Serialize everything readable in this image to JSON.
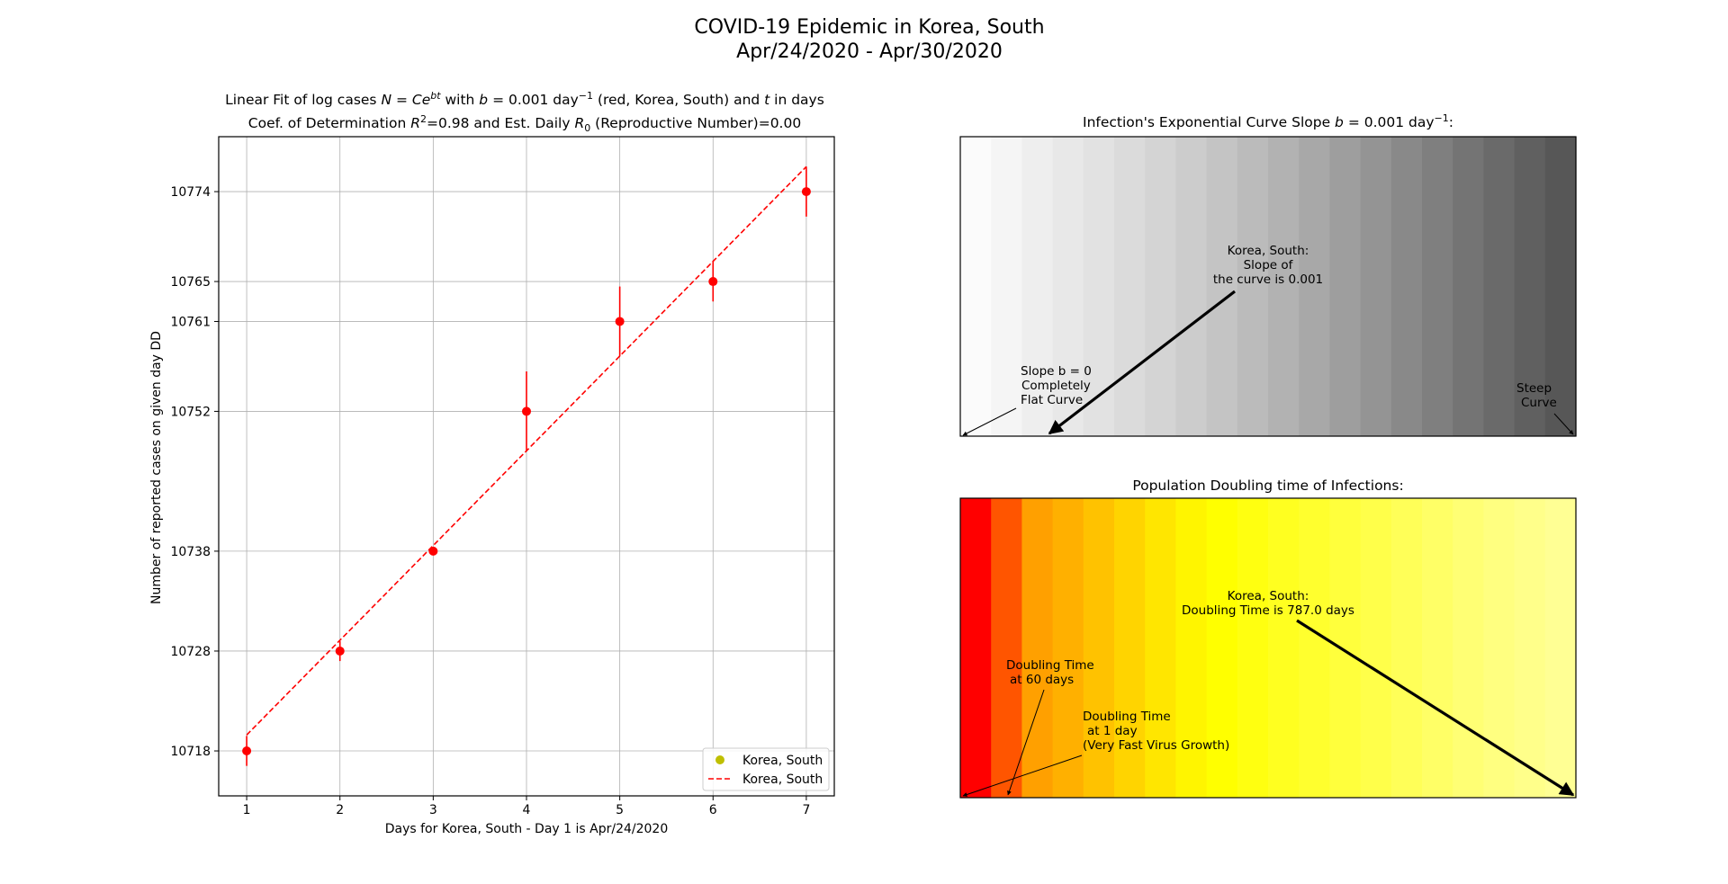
{
  "figure": {
    "title_line1": "COVID-19 Epidemic in Korea, South",
    "title_line2": "Apr/24/2020 - Apr/30/2020"
  },
  "colors": {
    "fit_red": "#ff0000",
    "legend_marker": "#bfbf00",
    "arrow": "#000000"
  },
  "chart_data": [
    {
      "type": "scatter",
      "title_line1": "Linear Fit of log cases N = Ce^{bt} with b = 0.001 day^-1 (red, Korea, South) and t in days",
      "title_line2": "Coef. of Determination R^2=0.98 and Est. Daily R_0 (Reproductive Number)=0.00",
      "xlabel": "Days for Korea, South - Day 1 is Apr/24/2020",
      "ylabel": "Number of reported cases on given day DD",
      "x": [
        1,
        2,
        3,
        4,
        5,
        6,
        7
      ],
      "y": [
        10718,
        10728,
        10738,
        10752,
        10761,
        10765,
        10774
      ],
      "y_err": [
        1.5,
        1.0,
        0.3,
        4.0,
        3.5,
        2.0,
        2.5
      ],
      "fit": {
        "x": [
          1,
          7
        ],
        "y": [
          10719.6,
          10776.5
        ]
      },
      "xticks": [
        1,
        2,
        3,
        4,
        5,
        6,
        7
      ],
      "yticks": [
        10718,
        10728,
        10738,
        10752,
        10761,
        10765,
        10774
      ],
      "xlim": [
        0.7,
        7.3
      ],
      "ylim": [
        10713.5,
        10779.5
      ],
      "grid": true,
      "legend": {
        "placement": "lower right",
        "entries": [
          {
            "label": "Korea, South",
            "style": "marker"
          },
          {
            "label": "Korea, South",
            "style": "dashed-line"
          }
        ]
      }
    },
    {
      "type": "heatmap",
      "title": "Infection's Exponential Curve Slope b = 0.001 day^-1:",
      "bands": [
        "#fbfbfb",
        "#f5f5f5",
        "#eeeeee",
        "#e8e8e8",
        "#e2e2e2",
        "#dbdbdb",
        "#d4d4d4",
        "#cccccc",
        "#c4c4c4",
        "#bbbbbb",
        "#b2b2b2",
        "#a8a8a8",
        "#9e9e9e",
        "#949494",
        "#898989",
        "#7f7f7f",
        "#747474",
        "#6a6a6a",
        "#606060",
        "#575757"
      ],
      "annotations": {
        "flat": [
          "Slope b = 0",
          "Completely",
          "Flat Curve"
        ],
        "current": [
          "Korea, South:",
          "Slope of",
          "the curve is 0.001"
        ],
        "steep": [
          "Steep",
          "Curve"
        ]
      }
    },
    {
      "type": "heatmap",
      "title": "Population Doubling time of Infections:",
      "bands": [
        "#ff0000",
        "#ff5500",
        "#ffa000",
        "#ffb000",
        "#ffc200",
        "#ffd400",
        "#ffe600",
        "#fff500",
        "#ffff00",
        "#ffff10",
        "#ffff20",
        "#ffff2e",
        "#ffff3c",
        "#ffff4a",
        "#ffff58",
        "#ffff66",
        "#ffff74",
        "#ffff80",
        "#ffff8a",
        "#ffff94"
      ],
      "annotations": {
        "dt60": [
          "Doubling Time",
          "at 60 days"
        ],
        "dt1": [
          "Doubling Time",
          "at 1 day",
          "(Very Fast Virus Growth)"
        ],
        "current": [
          "Korea, South:",
          "Doubling Time is 787.0 days"
        ]
      }
    }
  ]
}
